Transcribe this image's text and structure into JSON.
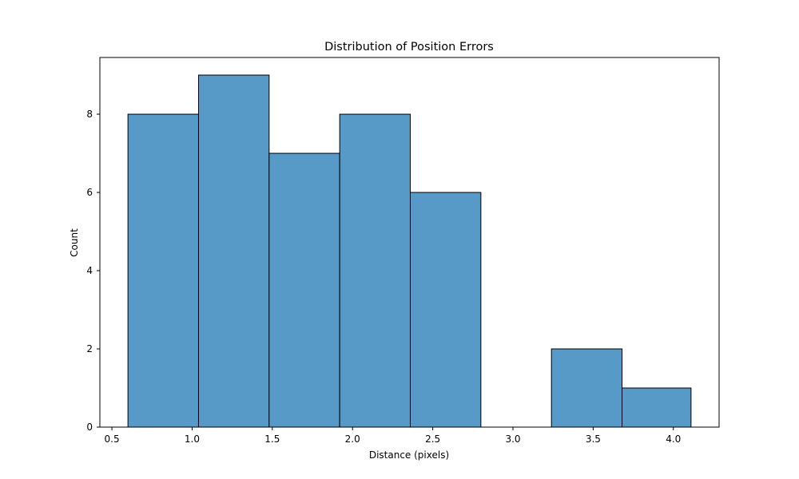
{
  "chart_data": {
    "type": "bar",
    "title": "Distribution of Position Errors",
    "xlabel": "Distance (pixels)",
    "ylabel": "Count",
    "xlim": [
      0.425,
      4.285
    ],
    "ylim": [
      0,
      9.45
    ],
    "bins": [
      {
        "start": 0.6,
        "end": 1.04,
        "count": 8
      },
      {
        "start": 1.04,
        "end": 1.48,
        "count": 9
      },
      {
        "start": 1.48,
        "end": 1.92,
        "count": 7
      },
      {
        "start": 1.92,
        "end": 2.36,
        "count": 8
      },
      {
        "start": 2.36,
        "end": 2.8,
        "count": 6
      },
      {
        "start": 2.8,
        "end": 3.24,
        "count": 0
      },
      {
        "start": 3.24,
        "end": 3.68,
        "count": 2
      },
      {
        "start": 3.68,
        "end": 4.11,
        "count": 1
      }
    ],
    "xticks": [
      {
        "value": 0.5,
        "label": "0.5"
      },
      {
        "value": 1.0,
        "label": "1.0"
      },
      {
        "value": 1.5,
        "label": "1.5"
      },
      {
        "value": 2.0,
        "label": "2.0"
      },
      {
        "value": 2.5,
        "label": "2.5"
      },
      {
        "value": 3.0,
        "label": "3.0"
      },
      {
        "value": 3.5,
        "label": "3.5"
      },
      {
        "value": 4.0,
        "label": "4.0"
      }
    ],
    "yticks": [
      {
        "value": 0,
        "label": "0"
      },
      {
        "value": 2,
        "label": "2"
      },
      {
        "value": 4,
        "label": "4"
      },
      {
        "value": 6,
        "label": "6"
      },
      {
        "value": 8,
        "label": "8"
      }
    ],
    "bar_color": "#5799c7",
    "edge_color": "#000000",
    "grid": false
  }
}
